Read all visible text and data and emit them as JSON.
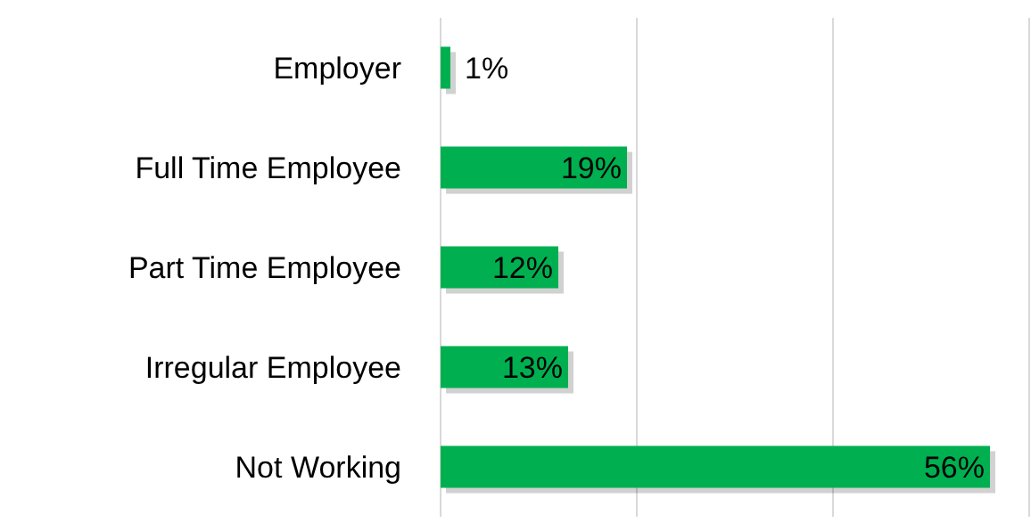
{
  "chart_data": {
    "type": "bar",
    "orientation": "horizontal",
    "categories": [
      "Employer",
      "Full Time Employee",
      "Part Time Employee",
      "Irregular Employee",
      "Not Working"
    ],
    "values": [
      1,
      19,
      12,
      13,
      56
    ],
    "value_labels": [
      "1%",
      "19%",
      "12%",
      "13%",
      "56%"
    ],
    "color": "#00b050",
    "xlim": [
      0,
      60
    ],
    "xticks": [
      {
        "value": 0,
        "label": null
      },
      {
        "value": 20,
        "label": null
      },
      {
        "value": 40,
        "label": null
      },
      {
        "value": 60,
        "label": null
      }
    ],
    "grid": "x",
    "tick_labels": "y"
  }
}
